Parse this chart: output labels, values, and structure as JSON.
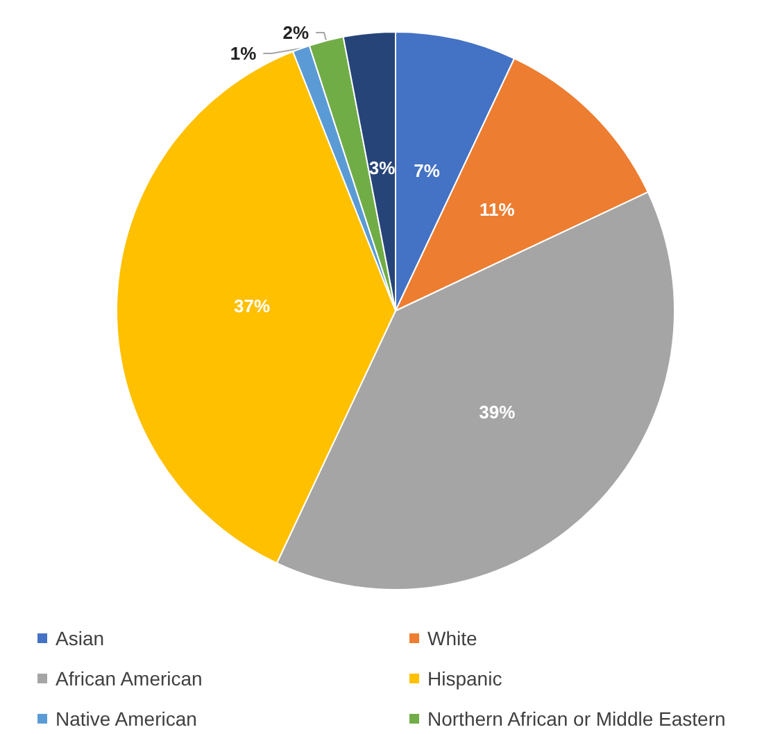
{
  "chart_data": {
    "type": "pie",
    "categories": [
      "Asian",
      "White",
      "African American",
      "Hispanic",
      "Native American",
      "Northern African or Middle Eastern",
      null
    ],
    "values": [
      7,
      11,
      39,
      37,
      1,
      2,
      3
    ],
    "colors": [
      "#4472c4",
      "#ed7d31",
      "#a5a5a5",
      "#ffc000",
      "#5b9bd5",
      "#70ad47",
      "#264478"
    ],
    "value_labels": [
      "7%",
      "11%",
      "39%",
      "37%",
      "1%",
      "2%",
      "3%"
    ],
    "legend": "bottom"
  }
}
